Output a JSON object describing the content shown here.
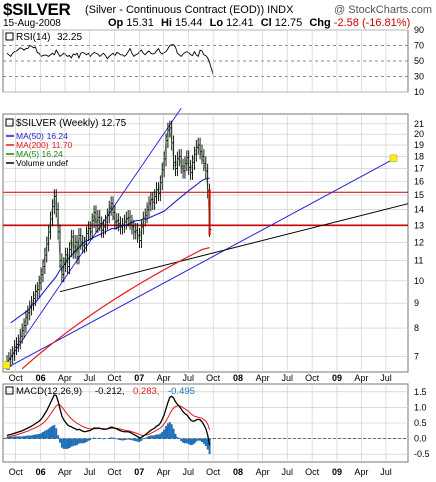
{
  "header": {
    "symbol": "$SILVER",
    "description": "(Silver - Continuous Contract (EOD)) INDX",
    "watermark": "@ StockCharts.com",
    "date": "15-Aug-2008",
    "quote": {
      "op_label": "Op",
      "op": "15.31",
      "hi_label": "Hi",
      "hi": "15.44",
      "lo_label": "Lo",
      "lo": "12.41",
      "cl_label": "Cl",
      "cl": "12.75",
      "chg_label": "Chg",
      "chg": "-2.58 (-16.81%)"
    }
  },
  "colors": {
    "price": "#000000",
    "ma50": "#1f1fc8",
    "ma200": "#e31b1b",
    "ma5": "#118811",
    "trend_blue": "#2020d8",
    "trend_black": "#000000",
    "hline_red": "#cc0000",
    "grid": "#c8c8c8",
    "macd_hist": "#1f6fb8",
    "rsi_fill": "#88aa88",
    "highlight": "#ffee00"
  },
  "chart_data": [
    {
      "type": "line",
      "panel": "rsi",
      "legend": {
        "label": "RSI(14)",
        "value": "32.25"
      },
      "y_ticks": [
        "90",
        "70",
        "50",
        "30",
        "10"
      ],
      "ylim": [
        10,
        90
      ],
      "x_start": "2005-08-15",
      "x_step": "1 week",
      "values": [
        60,
        58,
        56,
        60,
        62,
        63,
        65,
        67,
        66,
        64,
        66,
        66,
        70,
        69,
        67,
        68,
        61,
        60,
        56,
        57,
        58,
        57,
        56,
        58,
        60,
        58,
        64,
        60,
        56,
        58,
        60,
        58,
        56,
        57,
        54,
        59,
        58,
        60,
        54,
        60,
        61,
        60,
        58,
        60,
        56,
        59,
        61,
        60,
        59,
        56,
        58,
        60,
        57,
        53,
        56,
        58,
        60,
        57,
        61,
        60,
        58,
        58,
        56,
        58,
        62,
        66,
        60,
        56,
        58,
        59,
        62,
        64,
        60,
        58,
        61,
        63,
        60,
        59,
        60,
        63,
        66,
        61,
        59,
        61,
        62,
        66,
        70,
        71,
        71,
        68,
        60,
        58,
        56,
        59,
        61,
        62,
        61,
        58,
        57,
        62,
        58,
        56,
        64,
        63,
        58,
        57,
        54,
        48,
        40,
        32.25
      ]
    },
    {
      "type": "line",
      "panel": "price",
      "title": "$SILVER (Weekly) 12.75",
      "legend": [
        {
          "name": "MA(50)",
          "value": "16.24"
        },
        {
          "name": "MA(200)",
          "value": "11.70"
        },
        {
          "name": "MA(5)",
          "value": "16.24"
        },
        {
          "name": "Volume undef",
          "value": ""
        }
      ],
      "y_ticks": [
        "21",
        "20",
        "19",
        "18",
        "17",
        "16",
        "15",
        "14",
        "13",
        "12",
        "11",
        "10",
        "9",
        "8",
        "7"
      ],
      "y_scale": "log",
      "ylim": [
        6.5,
        22
      ],
      "x_ticks": [
        "Oct",
        "06",
        "Apr",
        "Jul",
        "Oct",
        "07",
        "Apr",
        "Jul",
        "Oct",
        "08",
        "Apr",
        "Jul",
        "Oct",
        "09",
        "Apr",
        "Jul"
      ],
      "x_start": "2005-08-15",
      "x_step": "1 week",
      "close": [
        6.8,
        6.9,
        7.0,
        7.1,
        7.3,
        7.4,
        7.5,
        7.7,
        7.9,
        8.1,
        8.4,
        8.6,
        8.8,
        9.0,
        9.2,
        9.5,
        9.6,
        9.9,
        10.3,
        10.7,
        11.3,
        11.9,
        12.6,
        13.4,
        14.2,
        14.9,
        14.0,
        12.6,
        11.0,
        10.3,
        10.8,
        11.3,
        10.7,
        11.6,
        12.3,
        11.5,
        12.0,
        11.2,
        12.4,
        12.0,
        11.8,
        11.9,
        12.5,
        12.8,
        12.6,
        13.3,
        13.8,
        13.0,
        13.5,
        13.1,
        12.7,
        12.9,
        13.2,
        13.6,
        14.1,
        14.4,
        13.8,
        13.2,
        13.3,
        13.1,
        12.9,
        13.0,
        13.2,
        13.4,
        13.5,
        13.2,
        12.9,
        12.6,
        12.7,
        12.4,
        12.1,
        12.9,
        13.4,
        13.6,
        14.0,
        14.4,
        14.7,
        14.5,
        14.9,
        15.4,
        15.1,
        15.9,
        16.9,
        17.8,
        19.4,
        20.4,
        20.6,
        19.2,
        17.5,
        17.0,
        17.8,
        18.0,
        17.2,
        16.8,
        17.4,
        17.9,
        17.1,
        16.7,
        17.5,
        18.2,
        18.8,
        19.0,
        18.4,
        18.0,
        17.4,
        16.8,
        15.3,
        12.75
      ],
      "ma50": [
        8.2,
        8.3,
        8.4,
        8.5,
        8.6,
        8.7,
        8.9,
        9.0,
        9.2,
        9.4,
        9.6,
        9.8,
        10.0,
        10.2,
        10.5,
        10.7,
        11.0,
        11.2,
        11.4,
        11.6,
        11.8,
        12.0,
        12.1,
        12.2,
        12.3,
        12.4,
        12.5,
        12.6,
        12.7,
        12.8,
        12.8,
        12.9,
        13.0,
        13.0,
        13.1,
        13.2,
        13.3,
        13.3,
        13.4,
        13.4,
        13.5,
        13.6,
        13.7,
        13.8,
        13.9,
        14.1,
        14.3,
        14.5,
        14.7,
        14.9,
        15.1,
        15.3,
        15.5,
        15.7,
        15.9,
        16.1,
        16.2,
        16.24
      ],
      "ma50_start_index": 52,
      "ma200": [
        6.6,
        6.8,
        7.0,
        7.2,
        7.4,
        7.6,
        7.8,
        8.0,
        8.2,
        8.4,
        8.6,
        8.8,
        9.0,
        9.2,
        9.4,
        9.6,
        9.8,
        10.0,
        10.2,
        10.4,
        10.6,
        10.8,
        11.0,
        11.2,
        11.4,
        11.6,
        11.7
      ],
      "ma200_start_index": 57,
      "ma5_note": "approximately equal to close"
    },
    {
      "type": "bar",
      "panel": "macd",
      "legend": {
        "label": "MACD(12,26,9)",
        "macd": "-0.212",
        "signal": "0.283",
        "hist": "-0.495"
      },
      "y_ticks": [
        "1.5",
        "1.0",
        "0.5",
        "0.0",
        "-0.5"
      ],
      "ylim": [
        -0.75,
        1.75
      ],
      "x_ticks": [
        "Oct",
        "06",
        "Apr",
        "Jul",
        "Oct",
        "07",
        "Apr",
        "Jul",
        "Oct",
        "08",
        "Apr",
        "Jul",
        "Oct",
        "09",
        "Apr",
        "Jul"
      ],
      "x_start": "2005-08-15",
      "x_step": "1 week",
      "macd": [
        0.1,
        0.12,
        0.13,
        0.15,
        0.17,
        0.19,
        0.21,
        0.23,
        0.25,
        0.28,
        0.31,
        0.34,
        0.37,
        0.4,
        0.44,
        0.48,
        0.52,
        0.56,
        0.62,
        0.7,
        0.8,
        0.9,
        1.02,
        1.15,
        1.28,
        1.4,
        1.38,
        1.2,
        0.95,
        0.72,
        0.6,
        0.52,
        0.44,
        0.4,
        0.38,
        0.34,
        0.32,
        0.28,
        0.3,
        0.27,
        0.24,
        0.22,
        0.23,
        0.25,
        0.26,
        0.3,
        0.34,
        0.33,
        0.34,
        0.33,
        0.31,
        0.3,
        0.3,
        0.31,
        0.34,
        0.37,
        0.36,
        0.33,
        0.31,
        0.28,
        0.25,
        0.23,
        0.22,
        0.22,
        0.22,
        0.2,
        0.17,
        0.13,
        0.1,
        0.06,
        0.02,
        0.04,
        0.08,
        0.12,
        0.17,
        0.22,
        0.27,
        0.3,
        0.34,
        0.4,
        0.43,
        0.5,
        0.62,
        0.76,
        0.96,
        1.16,
        1.32,
        1.36,
        1.3,
        1.18,
        1.1,
        1.04,
        0.95,
        0.86,
        0.8,
        0.76,
        0.68,
        0.6,
        0.56,
        0.56,
        0.6,
        0.62,
        0.6,
        0.54,
        0.44,
        0.32,
        0.12,
        -0.212
      ],
      "signal": [
        0.05,
        0.06,
        0.07,
        0.09,
        0.1,
        0.12,
        0.14,
        0.16,
        0.18,
        0.2,
        0.22,
        0.24,
        0.27,
        0.3,
        0.32,
        0.35,
        0.38,
        0.41,
        0.45,
        0.49,
        0.55,
        0.62,
        0.7,
        0.78,
        0.87,
        0.96,
        1.05,
        1.09,
        1.08,
        1.01,
        0.93,
        0.85,
        0.77,
        0.7,
        0.64,
        0.58,
        0.54,
        0.49,
        0.46,
        0.42,
        0.39,
        0.36,
        0.34,
        0.32,
        0.31,
        0.31,
        0.31,
        0.32,
        0.32,
        0.32,
        0.32,
        0.32,
        0.31,
        0.31,
        0.32,
        0.33,
        0.33,
        0.33,
        0.33,
        0.32,
        0.3,
        0.29,
        0.27,
        0.26,
        0.25,
        0.24,
        0.22,
        0.2,
        0.18,
        0.16,
        0.13,
        0.11,
        0.1,
        0.11,
        0.12,
        0.14,
        0.17,
        0.2,
        0.23,
        0.27,
        0.3,
        0.34,
        0.4,
        0.47,
        0.56,
        0.67,
        0.79,
        0.9,
        0.98,
        1.03,
        1.05,
        1.05,
        1.03,
        0.99,
        0.95,
        0.91,
        0.86,
        0.81,
        0.76,
        0.72,
        0.7,
        0.68,
        0.67,
        0.65,
        0.61,
        0.56,
        0.47,
        0.283
      ]
    }
  ]
}
